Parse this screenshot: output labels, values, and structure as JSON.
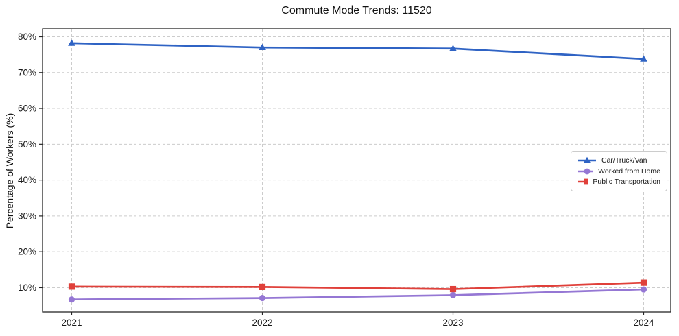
{
  "chart_data": {
    "type": "line",
    "title": "Commute Mode Trends: 11520",
    "xlabel": "",
    "ylabel": "Percentage of Workers (%)",
    "categories": [
      "2021",
      "2022",
      "2023",
      "2024"
    ],
    "series": [
      {
        "name": "Car/Truck/Van",
        "color": "#2f63c4",
        "marker": "triangle",
        "values": [
          78.2,
          77.0,
          76.7,
          73.8
        ]
      },
      {
        "name": "Worked from Home",
        "color": "#9577d4",
        "marker": "circle",
        "values": [
          6.7,
          7.1,
          7.9,
          9.5
        ]
      },
      {
        "name": "Public Transportation",
        "color": "#e0403a",
        "marker": "square",
        "values": [
          10.3,
          10.2,
          9.6,
          11.4
        ]
      }
    ],
    "y_ticks": [
      10,
      20,
      30,
      40,
      50,
      60,
      70,
      80
    ],
    "y_tick_suffix": "%",
    "ylim": [
      3.2,
      82.2
    ],
    "grid": true,
    "legend_position": "middle-right",
    "grid_color": "#cccccc",
    "axis_color": "#262626"
  }
}
